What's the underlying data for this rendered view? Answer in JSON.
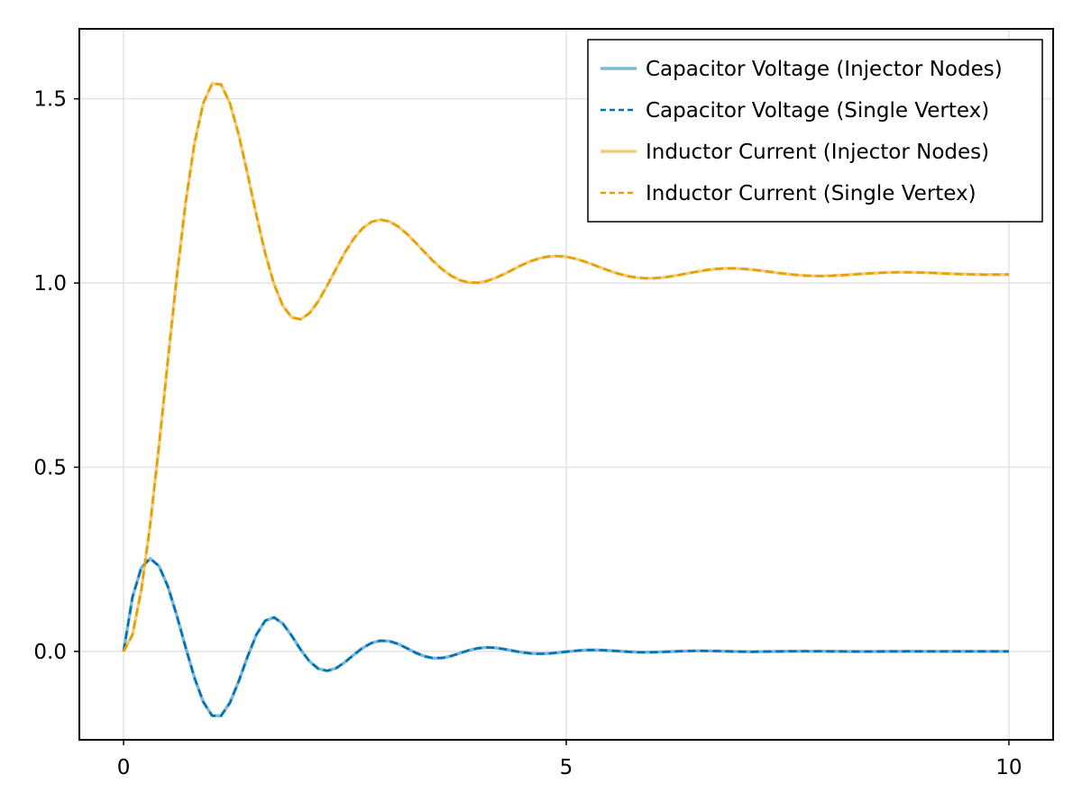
{
  "chart_data": {
    "type": "line",
    "title": "",
    "xlabel": "",
    "ylabel": "",
    "xlim": [
      -0.5,
      10.5
    ],
    "ylim": [
      -0.24,
      1.69
    ],
    "xticks": [
      0,
      5,
      10
    ],
    "yticks": [
      0.0,
      0.5,
      1.0,
      1.5
    ],
    "xtick_labels": [
      "0",
      "5",
      "10"
    ],
    "ytick_labels": [
      "0.0",
      "0.5",
      "1.0",
      "1.5"
    ],
    "grid": true,
    "legend_position": "top-right",
    "x": [
      0,
      0.1,
      0.2,
      0.3,
      0.4,
      0.5,
      0.6,
      0.7,
      0.8,
      0.9,
      1.0,
      1.1,
      1.2,
      1.3,
      1.4,
      1.5,
      1.6,
      1.7,
      1.8,
      1.9,
      2.0,
      2.1,
      2.2,
      2.3,
      2.4,
      2.5,
      2.6,
      2.7,
      2.8,
      2.9,
      3.0,
      3.1,
      3.2,
      3.3,
      3.4,
      3.5,
      3.6,
      3.7,
      3.8,
      3.9,
      4.0,
      4.1,
      4.2,
      4.3,
      4.4,
      4.5,
      4.6,
      4.7,
      4.8,
      4.9,
      5.0,
      5.1,
      5.2,
      5.3,
      5.4,
      5.5,
      5.6,
      5.7,
      5.8,
      5.9,
      6.0,
      6.1,
      6.2,
      6.3,
      6.4,
      6.5,
      6.6,
      6.7,
      6.8,
      6.9,
      7.0,
      7.1,
      7.2,
      7.3,
      7.4,
      7.5,
      7.6,
      7.7,
      7.8,
      7.9,
      8.0,
      8.1,
      8.2,
      8.3,
      8.4,
      8.5,
      8.6,
      8.7,
      8.8,
      8.9,
      9.0,
      9.1,
      9.2,
      9.3,
      9.4,
      9.5,
      9.6,
      9.7,
      9.8,
      9.9,
      10.0
    ],
    "series": [
      {
        "name": "Capacitor Voltage (Injector Nodes)",
        "color": "#0072b2",
        "opacity": 0.5,
        "style": "solid",
        "values": [
          0.0,
          0.1471,
          0.2274,
          0.2522,
          0.2317,
          0.1763,
          0.098,
          0.0113,
          -0.0712,
          -0.1372,
          -0.1745,
          -0.1749,
          -0.1398,
          -0.0812,
          -0.0143,
          0.0455,
          0.0835,
          0.0922,
          0.075,
          0.0421,
          0.0047,
          -0.0272,
          -0.047,
          -0.0527,
          -0.0456,
          -0.0294,
          -0.0093,
          0.0094,
          0.0228,
          0.0291,
          0.0279,
          0.0203,
          0.0085,
          -0.0038,
          -0.0134,
          -0.0184,
          -0.0178,
          -0.0125,
          -0.0047,
          0.003,
          0.0085,
          0.0108,
          0.0098,
          0.0062,
          0.0016,
          -0.0026,
          -0.0055,
          -0.0065,
          -0.0057,
          -0.0035,
          -0.0009,
          0.0016,
          0.0033,
          0.004,
          0.0035,
          0.0022,
          0.0005,
          -0.001,
          -0.002,
          -0.0024,
          -0.0021,
          -0.0013,
          -0.0003,
          0.0006,
          0.0012,
          0.0014,
          0.0012,
          0.0008,
          0.0002,
          -0.0003,
          -0.0007,
          -0.0008,
          -0.0007,
          -0.0004,
          -0.0001,
          0.0002,
          0.0004,
          0.0005,
          0.0004,
          0.0003,
          0.0001,
          -0.0001,
          -0.0002,
          -0.0003,
          -0.0003,
          -0.0002,
          0.0,
          0.0001,
          0.0001,
          0.0002,
          0.0001,
          0.0001,
          0.0,
          0.0,
          -0.0001,
          -0.0001,
          -0.0001,
          0.0,
          0.0,
          0.0,
          0.0
        ]
      },
      {
        "name": "Capacitor Voltage (Single Vertex)",
        "color": "#0072b2",
        "opacity": 1.0,
        "style": "dashed",
        "values": [
          0.0,
          0.1471,
          0.2274,
          0.2522,
          0.2317,
          0.1763,
          0.098,
          0.0113,
          -0.0712,
          -0.1372,
          -0.1745,
          -0.1749,
          -0.1398,
          -0.0812,
          -0.0143,
          0.0455,
          0.0835,
          0.0922,
          0.075,
          0.0421,
          0.0047,
          -0.0272,
          -0.047,
          -0.0527,
          -0.0456,
          -0.0294,
          -0.0093,
          0.0094,
          0.0228,
          0.0291,
          0.0279,
          0.0203,
          0.0085,
          -0.0038,
          -0.0134,
          -0.0184,
          -0.0178,
          -0.0125,
          -0.0047,
          0.003,
          0.0085,
          0.0108,
          0.0098,
          0.0062,
          0.0016,
          -0.0026,
          -0.0055,
          -0.0065,
          -0.0057,
          -0.0035,
          -0.0009,
          0.0016,
          0.0033,
          0.004,
          0.0035,
          0.0022,
          0.0005,
          -0.001,
          -0.002,
          -0.0024,
          -0.0021,
          -0.0013,
          -0.0003,
          0.0006,
          0.0012,
          0.0014,
          0.0012,
          0.0008,
          0.0002,
          -0.0003,
          -0.0007,
          -0.0008,
          -0.0007,
          -0.0004,
          -0.0001,
          0.0002,
          0.0004,
          0.0005,
          0.0004,
          0.0003,
          0.0001,
          -0.0001,
          -0.0002,
          -0.0003,
          -0.0003,
          -0.0002,
          0.0,
          0.0001,
          0.0001,
          0.0002,
          0.0001,
          0.0001,
          0.0,
          0.0,
          -0.0001,
          -0.0001,
          -0.0001,
          0.0,
          0.0,
          0.0,
          0.0
        ]
      },
      {
        "name": "Inductor Current (Injector Nodes)",
        "color": "#e69f00",
        "opacity": 0.5,
        "style": "solid",
        "values": [
          0.0,
          0.0452,
          0.1668,
          0.344,
          0.5583,
          0.7891,
          1.0153,
          1.217,
          1.3783,
          1.4882,
          1.5413,
          1.5391,
          1.489,
          1.4031,
          1.2963,
          1.184,
          1.0804,
          0.9963,
          0.9376,
          0.9066,
          0.9015,
          0.9181,
          0.9508,
          0.9931,
          1.039,
          1.0829,
          1.1205,
          1.1488,
          1.166,
          1.1719,
          1.1672,
          1.1537,
          1.1335,
          1.1093,
          1.0836,
          1.0589,
          1.037,
          1.0196,
          1.0076,
          1.0014,
          1.0008,
          1.0052,
          1.0136,
          1.0246,
          1.0369,
          1.0489,
          1.0594,
          1.0673,
          1.0721,
          1.0734,
          1.0713,
          1.0662,
          1.0589,
          1.0501,
          1.0409,
          1.0322,
          1.0245,
          1.0185,
          1.0146,
          1.0128,
          1.0131,
          1.0152,
          1.0187,
          1.023,
          1.0276,
          1.032,
          1.0357,
          1.0383,
          1.0396,
          1.0397,
          1.0385,
          1.0364,
          1.0336,
          1.0304,
          1.0272,
          1.0243,
          1.0219,
          1.0202,
          1.0193,
          1.0192,
          1.0198,
          1.021,
          1.0225,
          1.0242,
          1.0258,
          1.0272,
          1.0283,
          1.029,
          1.0292,
          1.029,
          1.0285,
          1.0277,
          1.0267,
          1.0257,
          1.0247,
          1.0239,
          1.0233,
          1.0229,
          1.0228,
          1.0229,
          1.0231
        ]
      },
      {
        "name": "Inductor Current (Single Vertex)",
        "color": "#e69f00",
        "opacity": 1.0,
        "style": "dashed",
        "values": [
          0.0,
          0.0452,
          0.1668,
          0.344,
          0.5583,
          0.7891,
          1.0153,
          1.217,
          1.3783,
          1.4882,
          1.5413,
          1.5391,
          1.489,
          1.4031,
          1.2963,
          1.184,
          1.0804,
          0.9963,
          0.9376,
          0.9066,
          0.9015,
          0.9181,
          0.9508,
          0.9931,
          1.039,
          1.0829,
          1.1205,
          1.1488,
          1.166,
          1.1719,
          1.1672,
          1.1537,
          1.1335,
          1.1093,
          1.0836,
          1.0589,
          1.037,
          1.0196,
          1.0076,
          1.0014,
          1.0008,
          1.0052,
          1.0136,
          1.0246,
          1.0369,
          1.0489,
          1.0594,
          1.0673,
          1.0721,
          1.0734,
          1.0713,
          1.0662,
          1.0589,
          1.0501,
          1.0409,
          1.0322,
          1.0245,
          1.0185,
          1.0146,
          1.0128,
          1.0131,
          1.0152,
          1.0187,
          1.023,
          1.0276,
          1.032,
          1.0357,
          1.0383,
          1.0396,
          1.0397,
          1.0385,
          1.0364,
          1.0336,
          1.0304,
          1.0272,
          1.0243,
          1.0219,
          1.0202,
          1.0193,
          1.0192,
          1.0198,
          1.021,
          1.0225,
          1.0242,
          1.0258,
          1.0272,
          1.0283,
          1.029,
          1.0292,
          1.029,
          1.0285,
          1.0277,
          1.0267,
          1.0257,
          1.0247,
          1.0239,
          1.0233,
          1.0229,
          1.0228,
          1.0229,
          1.0231
        ]
      }
    ]
  }
}
